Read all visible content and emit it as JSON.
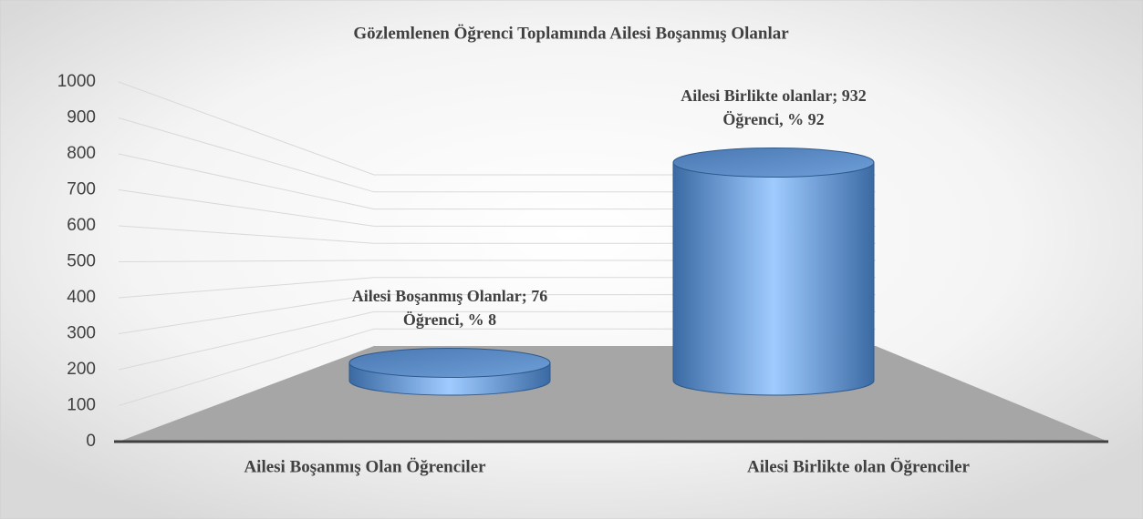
{
  "chart_data": {
    "type": "bar3d",
    "title": "Gözlemlenen Öğrenci Toplamında Ailesi Boşanmış Olanlar",
    "categories": [
      "Ailesi Boşanmış Olan Öğrenciler",
      "Ailesi Birlikte olan Öğrenciler"
    ],
    "values": [
      76,
      932
    ],
    "value_labels": [
      "Ailesi Boşanmış Olanlar; 76 Öğrenci, % 8",
      "Ailesi Birlikte olanlar; 932 Öğrenci, % 92"
    ],
    "color": "#4f81bd",
    "ylim": [
      0,
      1000
    ],
    "yticks": [
      0,
      100,
      200,
      300,
      400,
      500,
      600,
      700,
      800,
      900,
      1000
    ],
    "grid": true
  }
}
